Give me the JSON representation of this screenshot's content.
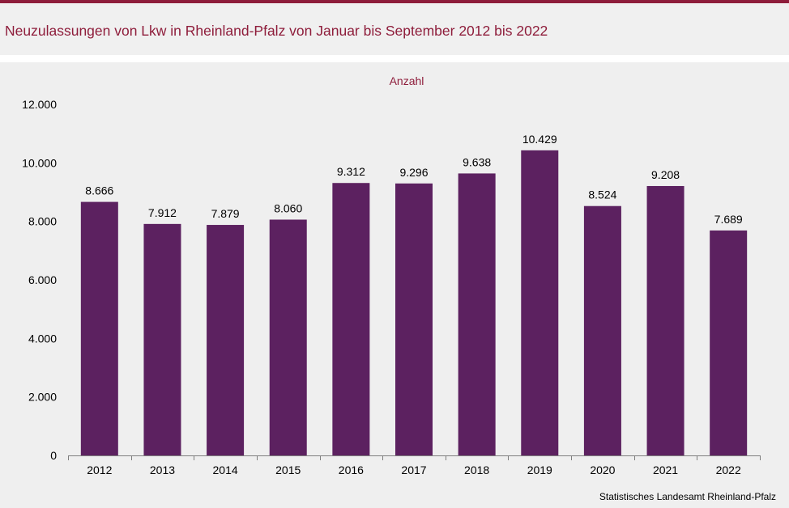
{
  "header": {
    "title": "Neuzulassungen von Lkw in Rheinland-Pfalz von Januar bis September 2012 bis 2022"
  },
  "footer": {
    "source": "Statistisches Landesamt  Rheinland-Pfalz"
  },
  "colors": {
    "accent": "#8e1d3b",
    "bar": "#5c2160",
    "background": "#efefef"
  },
  "chart_data": {
    "type": "bar",
    "title": "Neuzulassungen von Lkw in Rheinland-Pfalz von Januar bis September 2012 bis 2022",
    "ylabel": "Anzahl",
    "xlabel": "",
    "categories": [
      "2012",
      "2013",
      "2014",
      "2015",
      "2016",
      "2017",
      "2018",
      "2019",
      "2020",
      "2021",
      "2022"
    ],
    "values": [
      8666,
      7912,
      7879,
      8060,
      9312,
      9296,
      9638,
      10429,
      8524,
      9208,
      7689
    ],
    "value_labels": [
      "8.666",
      "7.912",
      "7.879",
      "8.060",
      "9.312",
      "9.296",
      "9.638",
      "10.429",
      "8.524",
      "9.208",
      "7.689"
    ],
    "ylim": [
      0,
      12000
    ],
    "yticks": [
      0,
      2000,
      4000,
      6000,
      8000,
      10000,
      12000
    ],
    "ytick_labels": [
      "0",
      "2.000",
      "4.000",
      "6.000",
      "8.000",
      "10.000",
      "12.000"
    ],
    "grid": false,
    "legend": "none"
  }
}
